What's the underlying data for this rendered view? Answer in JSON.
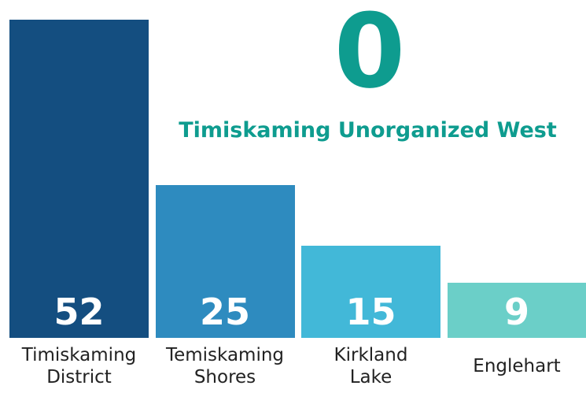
{
  "chart_data": {
    "type": "bar",
    "categories": [
      "Timiskaming District",
      "Temiskaming Shores",
      "Kirkland Lake",
      "Englehart"
    ],
    "values": [
      52,
      25,
      15,
      9
    ],
    "colors": [
      "#144e80",
      "#2e8bbf",
      "#42b8d8",
      "#6bcfc8"
    ],
    "highlight": {
      "value": 0,
      "label": "Timiskaming Unorganized West"
    }
  }
}
